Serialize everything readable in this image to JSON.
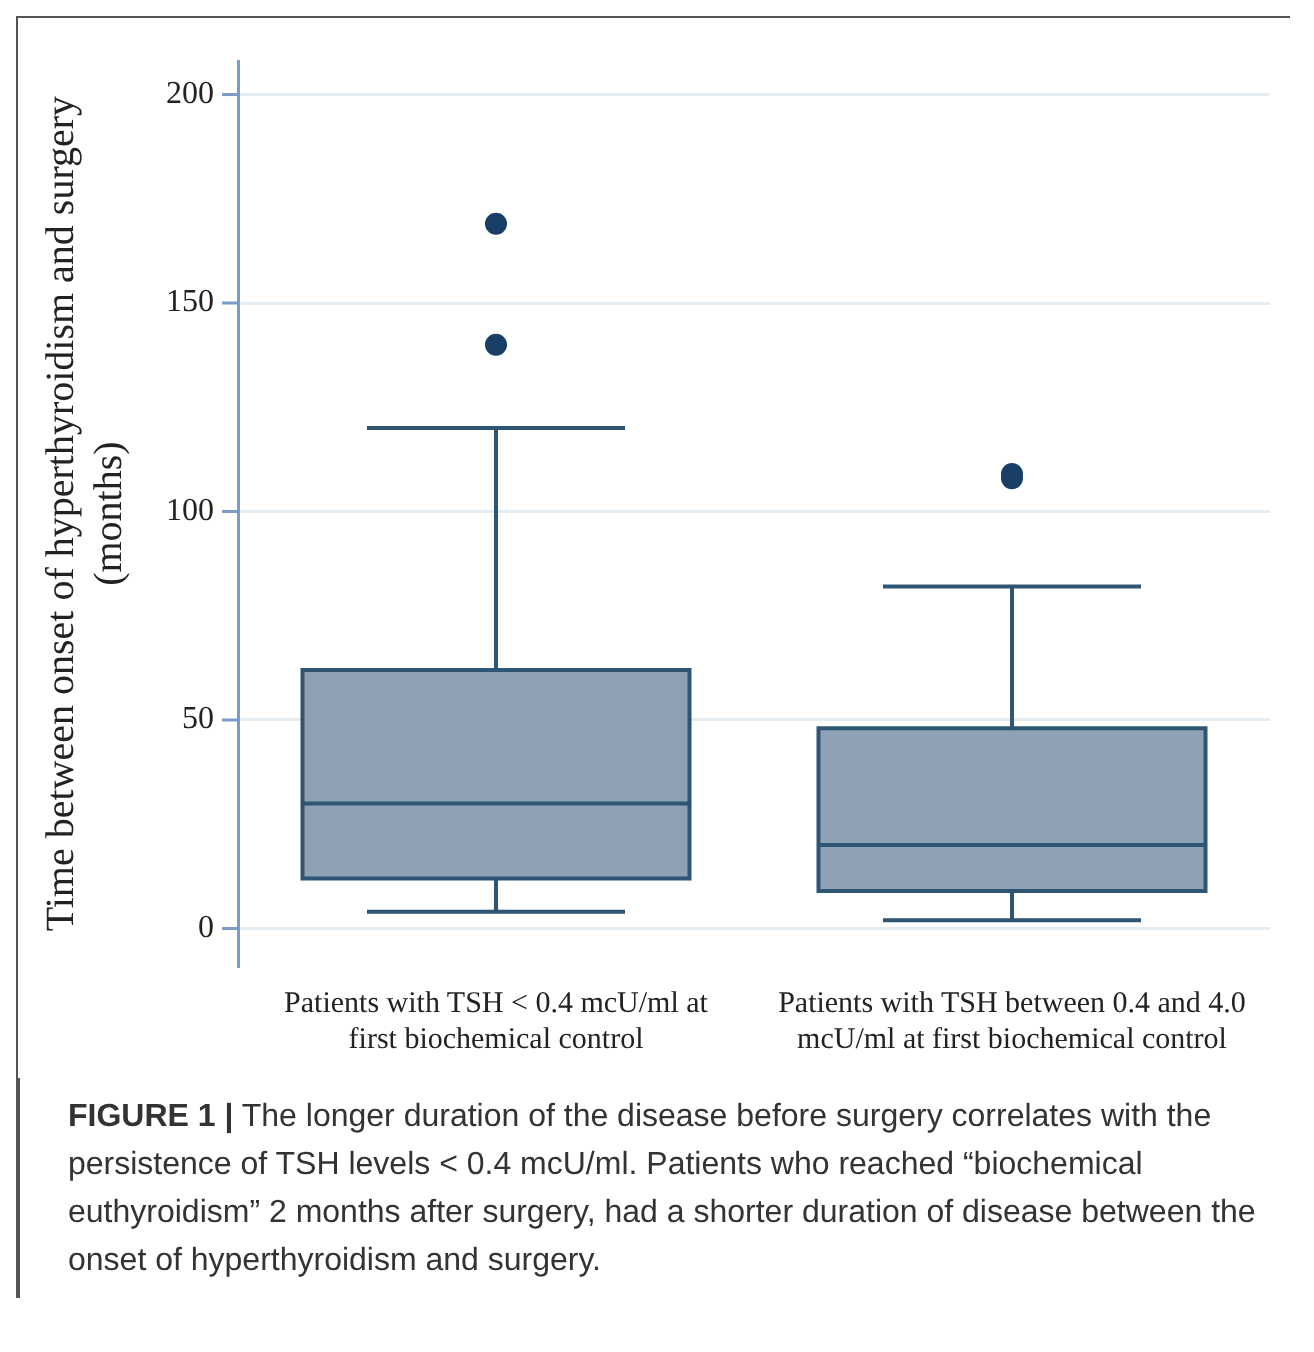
{
  "chart_data": {
    "type": "box",
    "ylabel": "Time between onset of hyperthyroidism and surgery (months)",
    "categories": [
      "Patients with TSH < 0.4 mcU/ml at first biochemical control",
      "Patients with TSH between 0.4 and 4.0 mcU/ml at first biochemical control"
    ],
    "boxes": [
      {
        "low": 4,
        "q1": 12,
        "median": 30,
        "q3": 62,
        "high": 120,
        "outliers": [
          140,
          169
        ]
      },
      {
        "low": 2,
        "q1": 9,
        "median": 20,
        "q3": 48,
        "high": 82,
        "outliers": [
          108,
          109
        ]
      }
    ],
    "color": "#8ea1b5",
    "ylim": [
      -9,
      208
    ],
    "yticks": [
      0,
      50,
      100,
      150,
      200
    ],
    "grid": "y",
    "annotations": [
      "FIGURE 1 | The longer duration of the disease before surgery correlates with the persistence of TSH levels < 0.4 mcU/ml. Patients who reached “biochemical euthyroidism” 2 months after surgery, had a shorter duration of disease between the onset of hyperthyroidism and surgery."
    ]
  }
}
